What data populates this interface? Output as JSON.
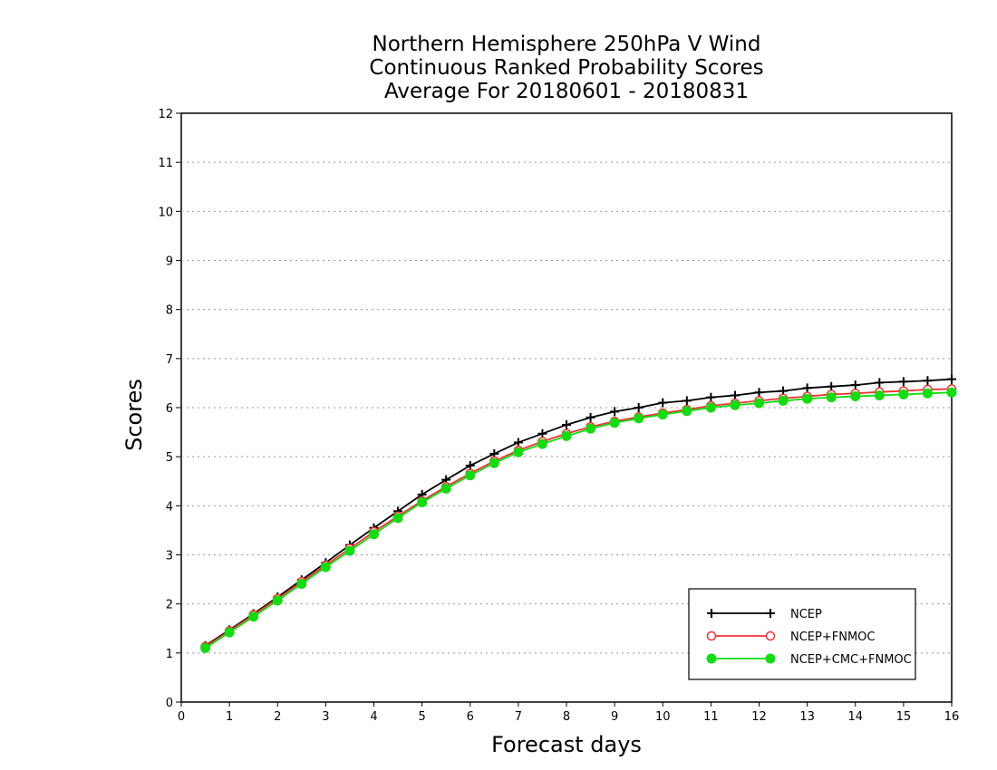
{
  "chart_data": {
    "type": "line",
    "title_lines": [
      "Northern Hemisphere 250hPa V Wind",
      "Continuous Ranked Probability Scores",
      "Average For 20180601 - 20180831"
    ],
    "xlabel": "Forecast days",
    "ylabel": "Scores",
    "xlim": [
      0,
      16
    ],
    "ylim": [
      0,
      12
    ],
    "xticks": [
      0,
      1,
      2,
      3,
      4,
      5,
      6,
      7,
      8,
      9,
      10,
      11,
      12,
      13,
      14,
      15,
      16
    ],
    "yticks": [
      0,
      1,
      2,
      3,
      4,
      5,
      6,
      7,
      8,
      9,
      10,
      11,
      12
    ],
    "grid": "horizontal dotted",
    "legend_position": "bottom-right",
    "x": [
      0.5,
      1,
      1.5,
      2,
      2.5,
      3,
      3.5,
      4,
      4.5,
      5,
      5.5,
      6,
      6.5,
      7,
      7.5,
      8,
      8.5,
      9,
      9.5,
      10,
      10.5,
      11,
      11.5,
      12,
      12.5,
      13,
      13.5,
      14,
      14.5,
      15,
      15.5,
      16
    ],
    "series": [
      {
        "name": "NCEP",
        "color": "#000000",
        "marker": "plus",
        "values": [
          1.15,
          1.47,
          1.8,
          2.14,
          2.49,
          2.84,
          3.2,
          3.55,
          3.89,
          4.23,
          4.53,
          4.82,
          5.06,
          5.29,
          5.47,
          5.65,
          5.8,
          5.92,
          6.0,
          6.1,
          6.14,
          6.21,
          6.25,
          6.31,
          6.34,
          6.4,
          6.43,
          6.46,
          6.51,
          6.53,
          6.55,
          6.58
        ]
      },
      {
        "name": "NCEP+FNMOC",
        "color": "#ee3333",
        "marker": "open-circle",
        "values": [
          1.13,
          1.45,
          1.78,
          2.11,
          2.45,
          2.79,
          3.13,
          3.47,
          3.79,
          4.1,
          4.39,
          4.66,
          4.91,
          5.13,
          5.31,
          5.47,
          5.61,
          5.72,
          5.81,
          5.89,
          5.96,
          6.04,
          6.09,
          6.14,
          6.19,
          6.23,
          6.27,
          6.29,
          6.32,
          6.34,
          6.37,
          6.38
        ]
      },
      {
        "name": "NCEP+CMC+FNMOC",
        "color": "#11dd11",
        "marker": "filled-circle",
        "values": [
          1.1,
          1.42,
          1.74,
          2.07,
          2.41,
          2.75,
          3.08,
          3.42,
          3.75,
          4.07,
          4.35,
          4.62,
          4.87,
          5.09,
          5.26,
          5.42,
          5.57,
          5.69,
          5.78,
          5.86,
          5.93,
          6.0,
          6.05,
          6.09,
          6.14,
          6.18,
          6.21,
          6.23,
          6.25,
          6.27,
          6.29,
          6.31
        ]
      }
    ]
  }
}
